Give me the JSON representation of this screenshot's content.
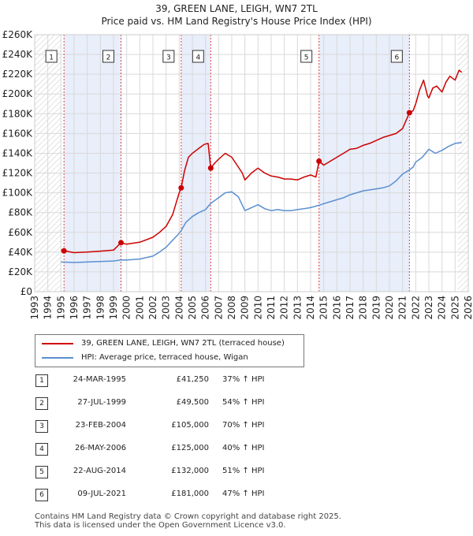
{
  "title": "39, GREEN LANE, LEIGH, WN7 2TL",
  "subtitle": "Price paid vs. HM Land Registry's House Price Index (HPI)",
  "chart_data": {
    "type": "line",
    "xlim": [
      1993,
      2026
    ],
    "ylim": [
      0,
      260000
    ],
    "y_ticks": [
      0,
      20000,
      40000,
      60000,
      80000,
      100000,
      120000,
      140000,
      160000,
      180000,
      200000,
      220000,
      240000,
      260000
    ],
    "y_tick_labels": [
      "£0",
      "£20K",
      "£40K",
      "£60K",
      "£80K",
      "£100K",
      "£120K",
      "£140K",
      "£160K",
      "£180K",
      "£200K",
      "£220K",
      "£240K",
      "£260K"
    ],
    "x_ticks": [
      1993,
      1994,
      1995,
      1996,
      1997,
      1998,
      1999,
      2000,
      2001,
      2002,
      2003,
      2004,
      2005,
      2006,
      2007,
      2008,
      2009,
      2010,
      2011,
      2012,
      2013,
      2014,
      2015,
      2016,
      2017,
      2018,
      2019,
      2020,
      2021,
      2022,
      2023,
      2024,
      2025,
      2026
    ],
    "x_tick_labels": [
      "1993",
      "1994",
      "1995",
      "1996",
      "1997",
      "1998",
      "1999",
      "2000",
      "2001",
      "2002",
      "2003",
      "2004",
      "2005",
      "2006",
      "2007",
      "2008",
      "2009",
      "2010",
      "2011",
      "2012",
      "2013",
      "2014",
      "2015",
      "2016",
      "2017",
      "2018",
      "2019",
      "2020",
      "2021",
      "2022",
      "2023",
      "2024",
      "2025",
      "2026"
    ],
    "hatched_before": 1995.0,
    "hatched_after": 2025.2,
    "shaded_ranges": [
      [
        1995.23,
        1999.57
      ],
      [
        2004.15,
        2006.4
      ],
      [
        2014.64,
        2021.52
      ]
    ],
    "series": [
      {
        "name": "39, GREEN LANE, LEIGH, WN7 2TL (terraced house)",
        "color": "#cc0000",
        "x": [
          1995.0,
          1995.23,
          1996.0,
          1997.0,
          1998.0,
          1999.0,
          1999.57,
          2000.0,
          2001.0,
          2002.0,
          2002.5,
          2003.0,
          2003.5,
          2004.0,
          2004.15,
          2004.4,
          2004.7,
          2005.0,
          2005.3,
          2005.6,
          2005.9,
          2006.2,
          2006.4,
          2006.7,
          2007.0,
          2007.5,
          2008.0,
          2008.4,
          2008.8,
          2009.0,
          2009.5,
          2010.0,
          2010.5,
          2011.0,
          2011.5,
          2012.0,
          2012.5,
          2013.0,
          2013.5,
          2014.0,
          2014.4,
          2014.64,
          2015.0,
          2015.5,
          2016.0,
          2016.5,
          2017.0,
          2017.5,
          2018.0,
          2018.5,
          2019.0,
          2019.5,
          2020.0,
          2020.5,
          2021.0,
          2021.52,
          2021.8,
          2022.0,
          2022.3,
          2022.6,
          2022.9,
          2023.0,
          2023.3,
          2023.6,
          2024.0,
          2024.3,
          2024.6,
          2025.0,
          2025.3,
          2025.5
        ],
        "values": [
          42000,
          41250,
          39500,
          40000,
          41000,
          42000,
          49500,
          48000,
          50000,
          55000,
          60000,
          66000,
          78000,
          100000,
          105000,
          122000,
          136000,
          140000,
          143000,
          146000,
          149000,
          150000,
          125000,
          130000,
          134000,
          140000,
          136000,
          128000,
          120000,
          113000,
          120000,
          125000,
          120000,
          117000,
          116000,
          114000,
          114000,
          113000,
          116000,
          118000,
          116000,
          132000,
          128000,
          132000,
          136000,
          140000,
          144000,
          145000,
          148000,
          150000,
          153000,
          156000,
          158000,
          160000,
          165000,
          181000,
          183000,
          190000,
          204000,
          214000,
          198000,
          196000,
          206000,
          208000,
          202000,
          212000,
          218000,
          214000,
          224000,
          222000
        ]
      },
      {
        "name": "HPI: Average price, terraced house, Wigan",
        "color": "#5b8fd0",
        "x": [
          1995.0,
          1996.0,
          1997.0,
          1998.0,
          1999.0,
          1999.57,
          2000.0,
          2001.0,
          2002.0,
          2002.5,
          2003.0,
          2003.5,
          2004.0,
          2004.15,
          2004.5,
          2005.0,
          2005.5,
          2006.0,
          2006.4,
          2007.0,
          2007.5,
          2008.0,
          2008.5,
          2009.0,
          2009.5,
          2010.0,
          2010.5,
          2011.0,
          2011.5,
          2012.0,
          2012.5,
          2013.0,
          2013.5,
          2014.0,
          2014.64,
          2015.0,
          2015.5,
          2016.0,
          2016.5,
          2017.0,
          2017.5,
          2018.0,
          2018.5,
          2019.0,
          2019.5,
          2020.0,
          2020.5,
          2021.0,
          2021.52,
          2021.8,
          2022.0,
          2022.5,
          2023.0,
          2023.5,
          2024.0,
          2024.5,
          2025.0,
          2025.5
        ],
        "values": [
          30000,
          29500,
          30000,
          30500,
          31000,
          32100,
          32000,
          33000,
          36000,
          40000,
          45000,
          52000,
          59000,
          61800,
          70000,
          76000,
          80000,
          83000,
          89300,
          95000,
          100000,
          101000,
          96000,
          82000,
          85000,
          88000,
          84000,
          82000,
          83000,
          82000,
          82000,
          83000,
          84000,
          85000,
          87400,
          89000,
          91000,
          93000,
          95000,
          98000,
          100000,
          102000,
          103000,
          104000,
          105000,
          107000,
          112000,
          119000,
          123100,
          126000,
          131000,
          136000,
          144000,
          140000,
          143000,
          147000,
          150000,
          151000
        ]
      }
    ],
    "sales": [
      {
        "label": "1",
        "x": 1995.23,
        "value": 41250
      },
      {
        "label": "2",
        "x": 1999.57,
        "value": 49500
      },
      {
        "label": "3",
        "x": 2004.15,
        "value": 105000
      },
      {
        "label": "4",
        "x": 2006.4,
        "value": 125000
      },
      {
        "label": "5",
        "x": 2014.64,
        "value": 132000
      },
      {
        "label": "6",
        "x": 2021.52,
        "value": 181000
      }
    ]
  },
  "legend": {
    "property": "39, GREEN LANE, LEIGH, WN7 2TL (terraced house)",
    "hpi": "HPI: Average price, terraced house, Wigan"
  },
  "table": [
    {
      "num": "1",
      "date": "24-MAR-1995",
      "price": "£41,250",
      "hpi": "37% ↑ HPI"
    },
    {
      "num": "2",
      "date": "27-JUL-1999",
      "price": "£49,500",
      "hpi": "54% ↑ HPI"
    },
    {
      "num": "3",
      "date": "23-FEB-2004",
      "price": "£105,000",
      "hpi": "70% ↑ HPI"
    },
    {
      "num": "4",
      "date": "26-MAY-2006",
      "price": "£125,000",
      "hpi": "40% ↑ HPI"
    },
    {
      "num": "5",
      "date": "22-AUG-2014",
      "price": "£132,000",
      "hpi": "51% ↑ HPI"
    },
    {
      "num": "6",
      "date": "09-JUL-2021",
      "price": "£181,000",
      "hpi": "47% ↑ HPI"
    }
  ],
  "footer": {
    "line1": "Contains HM Land Registry data © Crown copyright and database right 2025.",
    "line2": "This data is licensed under the Open Government Licence v3.0."
  },
  "colors": {
    "property_line": "#cc0000",
    "hpi_line": "#5b8fd0",
    "shade": "#e8eefa",
    "grid": "#d9d9d9"
  }
}
